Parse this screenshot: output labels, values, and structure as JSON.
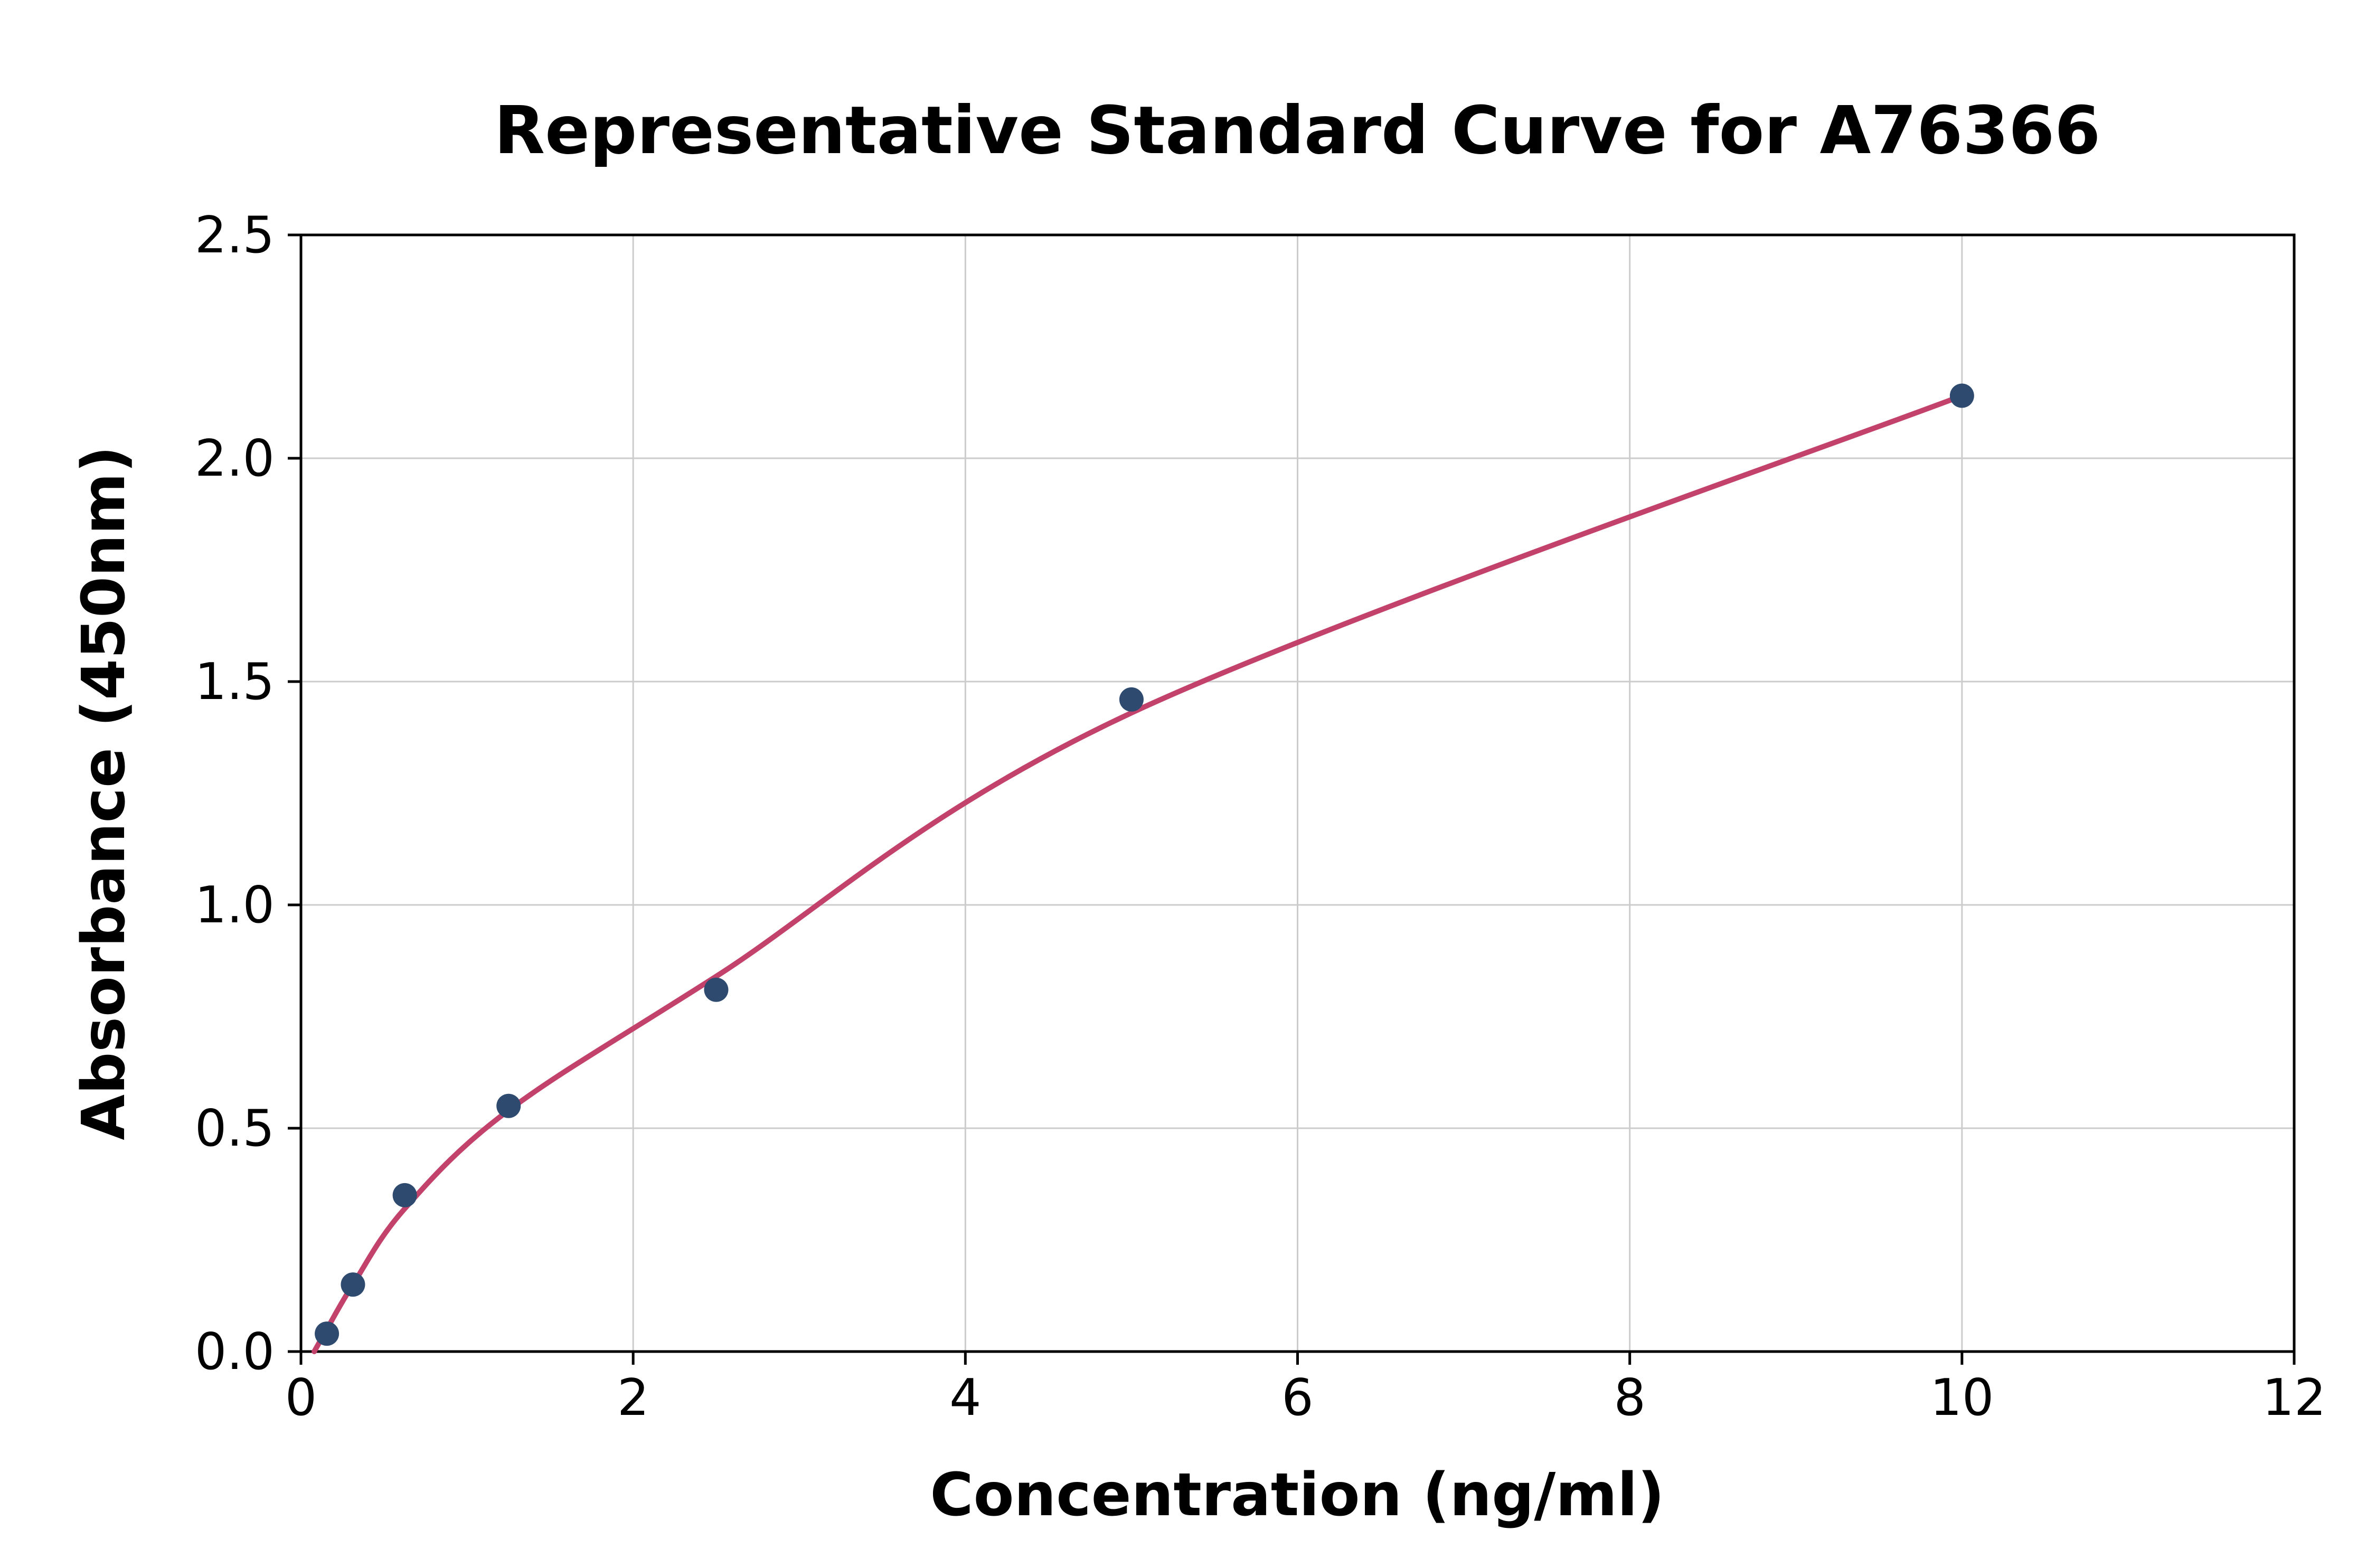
{
  "chart_data": {
    "type": "scatter",
    "title": "Representative Standard Curve for A76366",
    "xlabel": "Concentration (ng/ml)",
    "ylabel": "Absorbance (450nm)",
    "xlim": [
      0,
      12
    ],
    "ylim": [
      0,
      2.5
    ],
    "x_ticks": [
      0,
      2,
      4,
      6,
      8,
      10,
      12
    ],
    "x_tick_labels": [
      "0",
      "2",
      "4",
      "6",
      "8",
      "10",
      "12"
    ],
    "y_ticks": [
      0,
      0.5,
      1.0,
      1.5,
      2.0,
      2.5
    ],
    "y_tick_labels": [
      "0.0",
      "0.5",
      "1.0",
      "1.5",
      "2.0",
      "2.5"
    ],
    "grid": true,
    "legend": "none",
    "series": [
      {
        "name": "standards",
        "type": "scatter",
        "x": [
          0.156,
          0.313,
          0.625,
          1.25,
          2.5,
          5,
          10
        ],
        "y": [
          0.04,
          0.15,
          0.35,
          0.55,
          0.81,
          1.46,
          2.14
        ]
      },
      {
        "name": "fitted-curve",
        "type": "line",
        "x": [
          0.08,
          0.156,
          0.313,
          0.625,
          1.25,
          2.5,
          5,
          10
        ],
        "y": [
          0.0,
          0.05,
          0.15,
          0.32,
          0.54,
          0.84,
          1.43,
          2.14
        ]
      }
    ],
    "colors": {
      "point": "#2e4a6e",
      "curve": "#c2426b",
      "grid": "#cccccc",
      "axis": "#000000",
      "background": "#ffffff"
    }
  }
}
